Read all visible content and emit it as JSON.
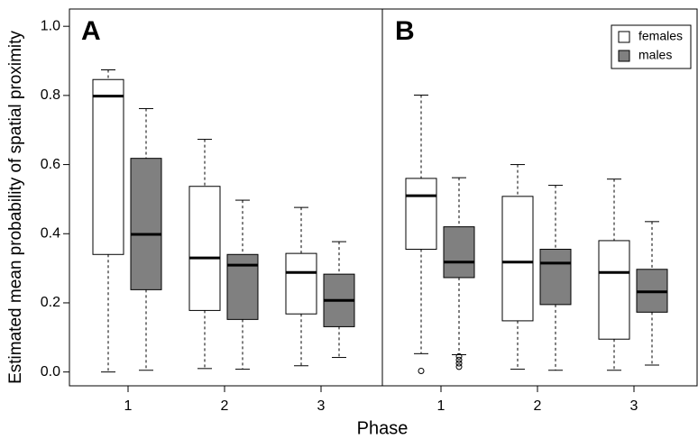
{
  "chart_data": [
    {
      "type": "boxplot",
      "title": "A",
      "ylabel": "Estimated mean probability of spatial proximity",
      "xlabel": "Phase",
      "categories": [
        "1",
        "2",
        "3"
      ],
      "ylim": [
        -0.04,
        1.05
      ],
      "yticks": [
        {
          "value": 0,
          "label": "0.0"
        },
        {
          "value": 0.2,
          "label": "0.2"
        },
        {
          "value": 0.4,
          "label": "0.4"
        },
        {
          "value": 0.6,
          "label": "0.6"
        },
        {
          "value": 0.8,
          "label": "0.8"
        },
        {
          "value": 1,
          "label": "1.0"
        }
      ],
      "series": [
        {
          "name": "females",
          "color": "#ffffff",
          "values": [
            {
              "min": 0.0,
              "q1": 0.34,
              "median": 0.798,
              "q3": 0.846,
              "max": 0.874
            },
            {
              "min": 0.01,
              "q1": 0.178,
              "median": 0.33,
              "q3": 0.537,
              "max": 0.673
            },
            {
              "min": 0.018,
              "q1": 0.168,
              "median": 0.288,
              "q3": 0.343,
              "max": 0.476
            }
          ]
        },
        {
          "name": "males",
          "color": "#808080",
          "values": [
            {
              "min": 0.005,
              "q1": 0.238,
              "median": 0.398,
              "q3": 0.618,
              "max": 0.762
            },
            {
              "min": 0.008,
              "q1": 0.152,
              "median": 0.309,
              "q3": 0.34,
              "max": 0.497
            },
            {
              "min": 0.042,
              "q1": 0.131,
              "median": 0.207,
              "q3": 0.283,
              "max": 0.377
            }
          ]
        }
      ]
    },
    {
      "type": "boxplot",
      "title": "B",
      "legend": "top-right",
      "categories": [
        "1",
        "2",
        "3"
      ],
      "ylim": [
        -0.04,
        1.05
      ],
      "series": [
        {
          "name": "females",
          "color": "#ffffff",
          "values": [
            {
              "min": 0.053,
              "q1": 0.355,
              "median": 0.51,
              "q3": 0.56,
              "max": 0.801,
              "outliers": [
                0.003
              ]
            },
            {
              "min": 0.008,
              "q1": 0.148,
              "median": 0.318,
              "q3": 0.508,
              "max": 0.6
            },
            {
              "min": 0.005,
              "q1": 0.095,
              "median": 0.288,
              "q3": 0.38,
              "max": 0.558
            }
          ]
        },
        {
          "name": "males",
          "color": "#808080",
          "values": [
            {
              "min": 0.05,
              "q1": 0.273,
              "median": 0.318,
              "q3": 0.42,
              "max": 0.562,
              "outliers": [
                0.045,
                0.035,
                0.025,
                0.015
              ]
            },
            {
              "min": 0.005,
              "q1": 0.195,
              "median": 0.315,
              "q3": 0.355,
              "max": 0.54
            },
            {
              "min": 0.02,
              "q1": 0.173,
              "median": 0.232,
              "q3": 0.297,
              "max": 0.435
            }
          ]
        }
      ]
    }
  ]
}
